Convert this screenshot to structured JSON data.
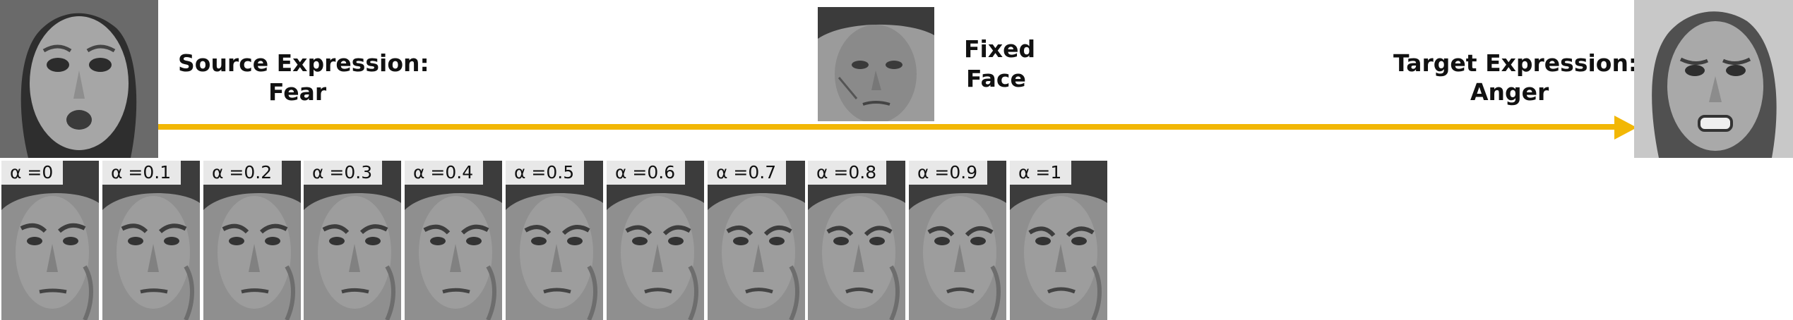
{
  "source": {
    "title": "Source Expression:",
    "expression": "Fear"
  },
  "fixed_face": {
    "line1": "Fixed",
    "line2": "Face"
  },
  "target": {
    "title": "Target Expression:",
    "expression": "Anger"
  },
  "arrow_color": "#f2b705",
  "interpolation": {
    "labels": [
      "α =0",
      "α =0.1",
      "α =0.2",
      "α =0.3",
      "α =0.4",
      "α =0.5",
      "α =0.6",
      "α =0.7",
      "α =0.8",
      "α =0.9",
      "α =1"
    ]
  }
}
